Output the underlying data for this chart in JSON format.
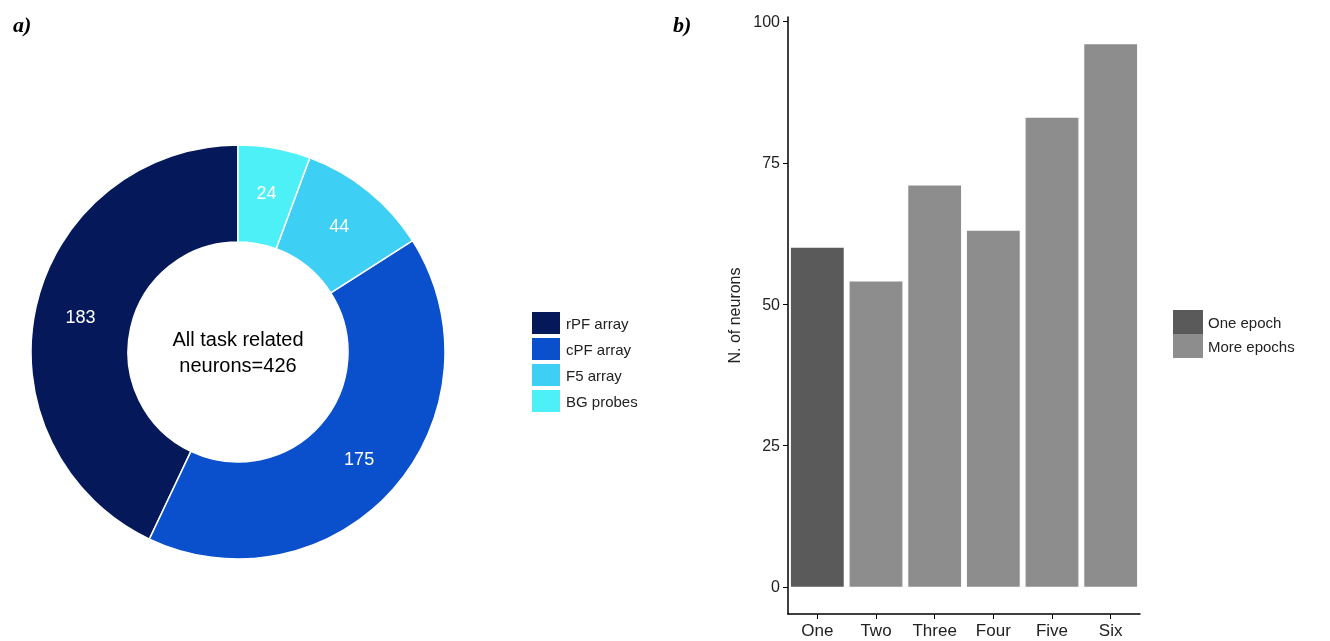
{
  "chart_data": [
    {
      "type": "donut",
      "title": "a)",
      "categories": [
        "rPF array",
        "cPF array",
        "F5 array",
        "BG probes"
      ],
      "values": [
        183,
        175,
        44,
        24
      ],
      "colors": [
        "#05185a",
        "#0a50cc",
        "#3ecff5",
        "#4ef0f7"
      ],
      "data_labels": true,
      "legend": "right",
      "annotations": [
        "All task related\nneurons=426"
      ]
    },
    {
      "type": "bar",
      "title": "b)",
      "categories": [
        "One",
        "Two",
        "Three",
        "Four",
        "Five",
        "Six"
      ],
      "ylabel": "N. of neurons",
      "ylim": [
        -4.8,
        100.8
      ],
      "yticks": [
        0,
        25,
        50,
        75,
        100
      ],
      "grid": false,
      "legend": "right",
      "series": [
        {
          "name": "One epoch",
          "color": "#5a5a5a",
          "values": [
            60,
            null,
            null,
            null,
            null,
            null
          ]
        },
        {
          "name": "More epochs",
          "color": "#8d8d8d",
          "values": [
            null,
            54,
            71,
            63,
            83,
            96
          ]
        }
      ]
    }
  ]
}
